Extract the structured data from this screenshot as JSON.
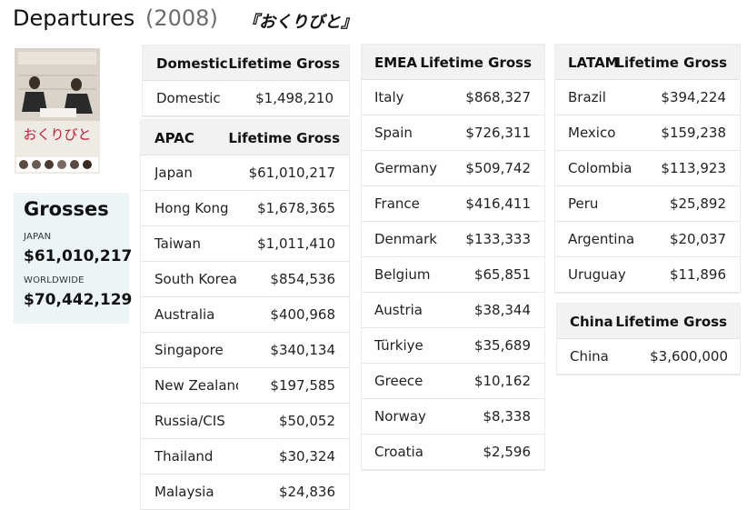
{
  "header": {
    "title": "Departures",
    "year": "(2008)",
    "japanese_title": "『おくりびと』"
  },
  "poster": {
    "text": "おくりびと",
    "colors": {
      "top": "#d8d2c8",
      "figure": "#2a2a2a",
      "title_red": "#c0203a"
    }
  },
  "grosses": {
    "title": "Grosses",
    "rows": [
      {
        "label": "JAPAN",
        "value": "$61,010,217"
      },
      {
        "label": "WORLDWIDE",
        "value": "$70,442,129"
      }
    ]
  },
  "tables": {
    "domestic": {
      "region": "Domestic",
      "gross_header": "Lifetime Gross",
      "rows": [
        {
          "market": "Domestic",
          "gross": "$1,498,210"
        }
      ]
    },
    "apac": {
      "region": "APAC",
      "gross_header": "Lifetime Gross",
      "rows": [
        {
          "market": "Japan",
          "gross": "$61,010,217"
        },
        {
          "market": "Hong Kong",
          "gross": "$1,678,365"
        },
        {
          "market": "Taiwan",
          "gross": "$1,011,410"
        },
        {
          "market": "South Korea",
          "gross": "$854,536"
        },
        {
          "market": "Australia",
          "gross": "$400,968"
        },
        {
          "market": "Singapore",
          "gross": "$340,134"
        },
        {
          "market": "New Zealand",
          "gross": "$197,585"
        },
        {
          "market": "Russia/CIS",
          "gross": "$50,052"
        },
        {
          "market": "Thailand",
          "gross": "$30,324"
        },
        {
          "market": "Malaysia",
          "gross": "$24,836"
        }
      ]
    },
    "emea": {
      "region": "EMEA",
      "gross_header": "Lifetime Gross",
      "rows": [
        {
          "market": "Italy",
          "gross": "$868,327"
        },
        {
          "market": "Spain",
          "gross": "$726,311"
        },
        {
          "market": "Germany",
          "gross": "$509,742"
        },
        {
          "market": "France",
          "gross": "$416,411"
        },
        {
          "market": "Denmark",
          "gross": "$133,333"
        },
        {
          "market": "Belgium",
          "gross": "$65,851"
        },
        {
          "market": "Austria",
          "gross": "$38,344"
        },
        {
          "market": "Türkiye",
          "gross": "$35,689"
        },
        {
          "market": "Greece",
          "gross": "$10,162"
        },
        {
          "market": "Norway",
          "gross": "$8,338"
        },
        {
          "market": "Croatia",
          "gross": "$2,596"
        }
      ]
    },
    "latam": {
      "region": "LATAM",
      "gross_header": "Lifetime Gross",
      "rows": [
        {
          "market": "Brazil",
          "gross": "$394,224"
        },
        {
          "market": "Mexico",
          "gross": "$159,238"
        },
        {
          "market": "Colombia",
          "gross": "$113,923"
        },
        {
          "market": "Peru",
          "gross": "$25,892"
        },
        {
          "market": "Argentina",
          "gross": "$20,037"
        },
        {
          "market": "Uruguay",
          "gross": "$11,896"
        }
      ]
    },
    "china": {
      "region": "China",
      "gross_header": "Lifetime Gross",
      "rows": [
        {
          "market": "China",
          "gross": "$3,600,000"
        }
      ]
    }
  }
}
